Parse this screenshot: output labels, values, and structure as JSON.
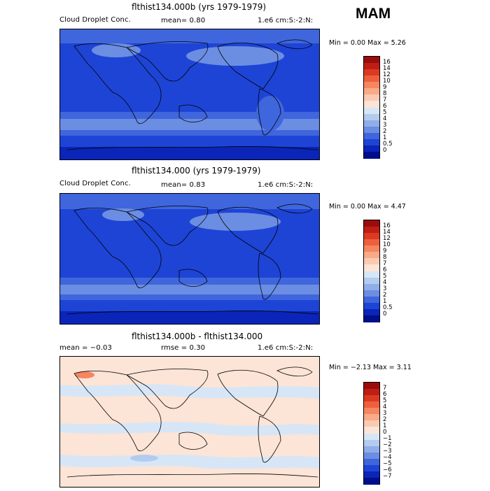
{
  "season": "MAM",
  "panels": [
    {
      "title": "flthist134.000b (yrs 1979-1979)",
      "left_label": "Cloud Droplet Conc.",
      "mid_label": "mean=   0.80",
      "right_label": "1.e6 cm:S:-2:N:",
      "min_max": "Min =   0.00 Max =   5.26"
    },
    {
      "title": "flthist134.000 (yrs 1979-1979)",
      "left_label": "Cloud Droplet Conc.",
      "mid_label": "mean=   0.83",
      "right_label": "1.e6 cm:S:-2:N:",
      "min_max": "Min =   0.00 Max =   4.47"
    },
    {
      "title": "flthist134.000b - flthist134.000",
      "left_label": "mean =  −0.03",
      "mid_label": "rmse =   0.30",
      "right_label": "1.e6 cm:S:-2:N:",
      "min_max": "Min =  −2.13 Max =   3.11"
    }
  ],
  "chart_data": [
    {
      "type": "heatmap",
      "title": "flthist134.000b (yrs 1979-1979)",
      "variable": "Cloud Droplet Conc.",
      "units": "1.e6 cm:S:-2:N:",
      "mean": 0.8,
      "min": 0.0,
      "max": 5.26,
      "colorbar_levels": [
        "16",
        "14",
        "12",
        "10",
        "9",
        "8",
        "7",
        "6",
        "5",
        "4",
        "3",
        "2",
        "1",
        "0.5",
        "0"
      ],
      "colorbar_colors": [
        "#9b0c0c",
        "#bf1e14",
        "#db3a22",
        "#ee5f3e",
        "#f58660",
        "#f9aa87",
        "#fbcab2",
        "#fce4d6",
        "#d7e6f6",
        "#b3cbef",
        "#8faee9",
        "#6b8ee3",
        "#3f66dc",
        "#1e44d6",
        "#0a25b8",
        "#000d8c"
      ]
    },
    {
      "type": "heatmap",
      "title": "flthist134.000 (yrs 1979-1979)",
      "variable": "Cloud Droplet Conc.",
      "units": "1.e6 cm:S:-2:N:",
      "mean": 0.83,
      "min": 0.0,
      "max": 4.47,
      "colorbar_levels": [
        "16",
        "14",
        "12",
        "10",
        "9",
        "8",
        "7",
        "6",
        "5",
        "4",
        "3",
        "2",
        "1",
        "0.5",
        "0"
      ],
      "colorbar_colors": [
        "#9b0c0c",
        "#bf1e14",
        "#db3a22",
        "#ee5f3e",
        "#f58660",
        "#f9aa87",
        "#fbcab2",
        "#fce4d6",
        "#d7e6f6",
        "#b3cbef",
        "#8faee9",
        "#6b8ee3",
        "#3f66dc",
        "#1e44d6",
        "#0a25b8",
        "#000d8c"
      ]
    },
    {
      "type": "heatmap",
      "title": "flthist134.000b - flthist134.000",
      "units": "1.e6 cm:S:-2:N:",
      "mean": -0.03,
      "rmse": 0.3,
      "min": -2.13,
      "max": 3.11,
      "colorbar_levels": [
        "7",
        "6",
        "5",
        "4",
        "3",
        "2",
        "1",
        "0",
        "−1",
        "−2",
        "−3",
        "−4",
        "−5",
        "−6",
        "−7"
      ],
      "colorbar_colors": [
        "#9b0c0c",
        "#bf1e14",
        "#db3a22",
        "#ee5f3e",
        "#f58660",
        "#f9aa87",
        "#fbcab2",
        "#fce4d6",
        "#d7e6f6",
        "#b3cbef",
        "#8faee9",
        "#6b8ee3",
        "#3f66dc",
        "#1e44d6",
        "#0a25b8",
        "#000d8c"
      ]
    }
  ]
}
